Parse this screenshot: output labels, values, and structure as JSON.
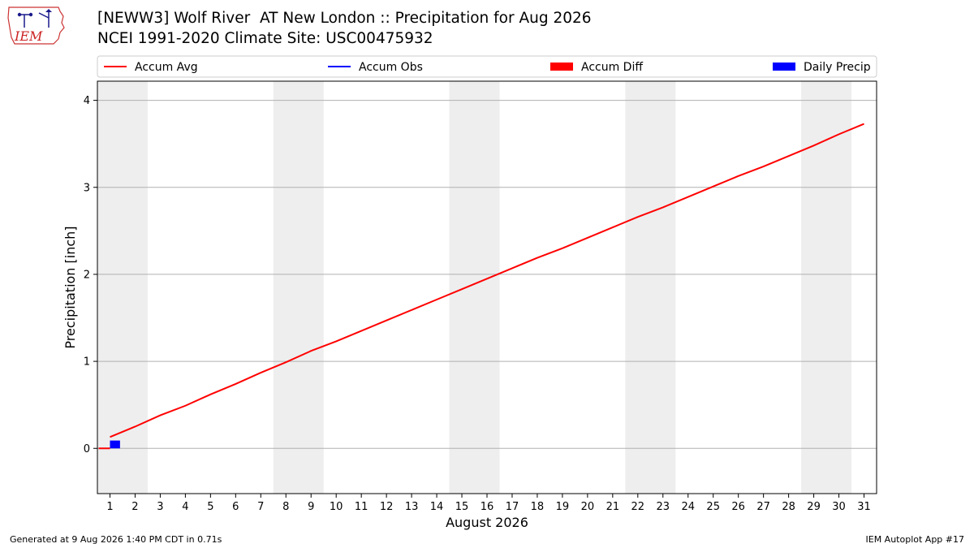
{
  "title_line1": "[NEWW3] Wolf River  AT New London :: Precipitation for Aug 2026",
  "title_line2": "NCEI 1991-2020 Climate Site: USC00475932",
  "logo_text": "IEM",
  "footer_left": "Generated at 9 Aug 2026 1:40 PM CDT in 0.71s",
  "footer_right": "IEM Autoplot App #17",
  "colors": {
    "accum_avg": "#ff0000",
    "accum_obs": "#0000ff",
    "accum_diff": "#ff0000",
    "daily_precip": "#0000ff",
    "weekend_shade": "#eeeeee",
    "grid": "#b0b0b0"
  },
  "chart_data": {
    "type": "line",
    "xlabel": "August 2026",
    "ylabel": "Precipitation [inch]",
    "xlim": [
      0.5,
      31.5
    ],
    "ylim": [
      -0.52,
      4.22
    ],
    "y_ticks": [
      0,
      1,
      2,
      3,
      4
    ],
    "x_ticks": [
      1,
      2,
      3,
      4,
      5,
      6,
      7,
      8,
      9,
      10,
      11,
      12,
      13,
      14,
      15,
      16,
      17,
      18,
      19,
      20,
      21,
      22,
      23,
      24,
      25,
      26,
      27,
      28,
      29,
      30,
      31
    ],
    "grid": "horizontal",
    "legend_position": "top",
    "legend": [
      {
        "label": "Accum Avg",
        "kind": "line",
        "color_key": "accum_avg"
      },
      {
        "label": "Accum Obs",
        "kind": "line",
        "color_key": "accum_obs"
      },
      {
        "label": "Accum Diff",
        "kind": "patch",
        "color_key": "accum_diff"
      },
      {
        "label": "Daily Precip",
        "kind": "patch",
        "color_key": "daily_precip"
      }
    ],
    "weekend_days": [
      [
        1,
        2
      ],
      [
        8,
        9
      ],
      [
        15,
        16
      ],
      [
        22,
        23
      ],
      [
        29,
        30
      ]
    ],
    "series": [
      {
        "name": "Accum Avg",
        "x": [
          1,
          2,
          3,
          4,
          5,
          6,
          7,
          8,
          9,
          10,
          11,
          12,
          13,
          14,
          15,
          16,
          17,
          18,
          19,
          20,
          21,
          22,
          23,
          24,
          25,
          26,
          27,
          28,
          29,
          30,
          31
        ],
        "values": [
          0.13,
          0.25,
          0.38,
          0.49,
          0.62,
          0.74,
          0.87,
          0.99,
          1.12,
          1.23,
          1.35,
          1.47,
          1.59,
          1.71,
          1.83,
          1.95,
          2.07,
          2.19,
          2.3,
          2.42,
          2.54,
          2.66,
          2.77,
          2.89,
          3.01,
          3.13,
          3.24,
          3.36,
          3.48,
          3.61,
          3.73
        ]
      },
      {
        "name": "Accum Diff",
        "x": [
          1
        ],
        "values": [
          0.0
        ]
      },
      {
        "name": "Daily Precip",
        "x": [
          1.2
        ],
        "values": [
          0.09
        ]
      }
    ]
  }
}
